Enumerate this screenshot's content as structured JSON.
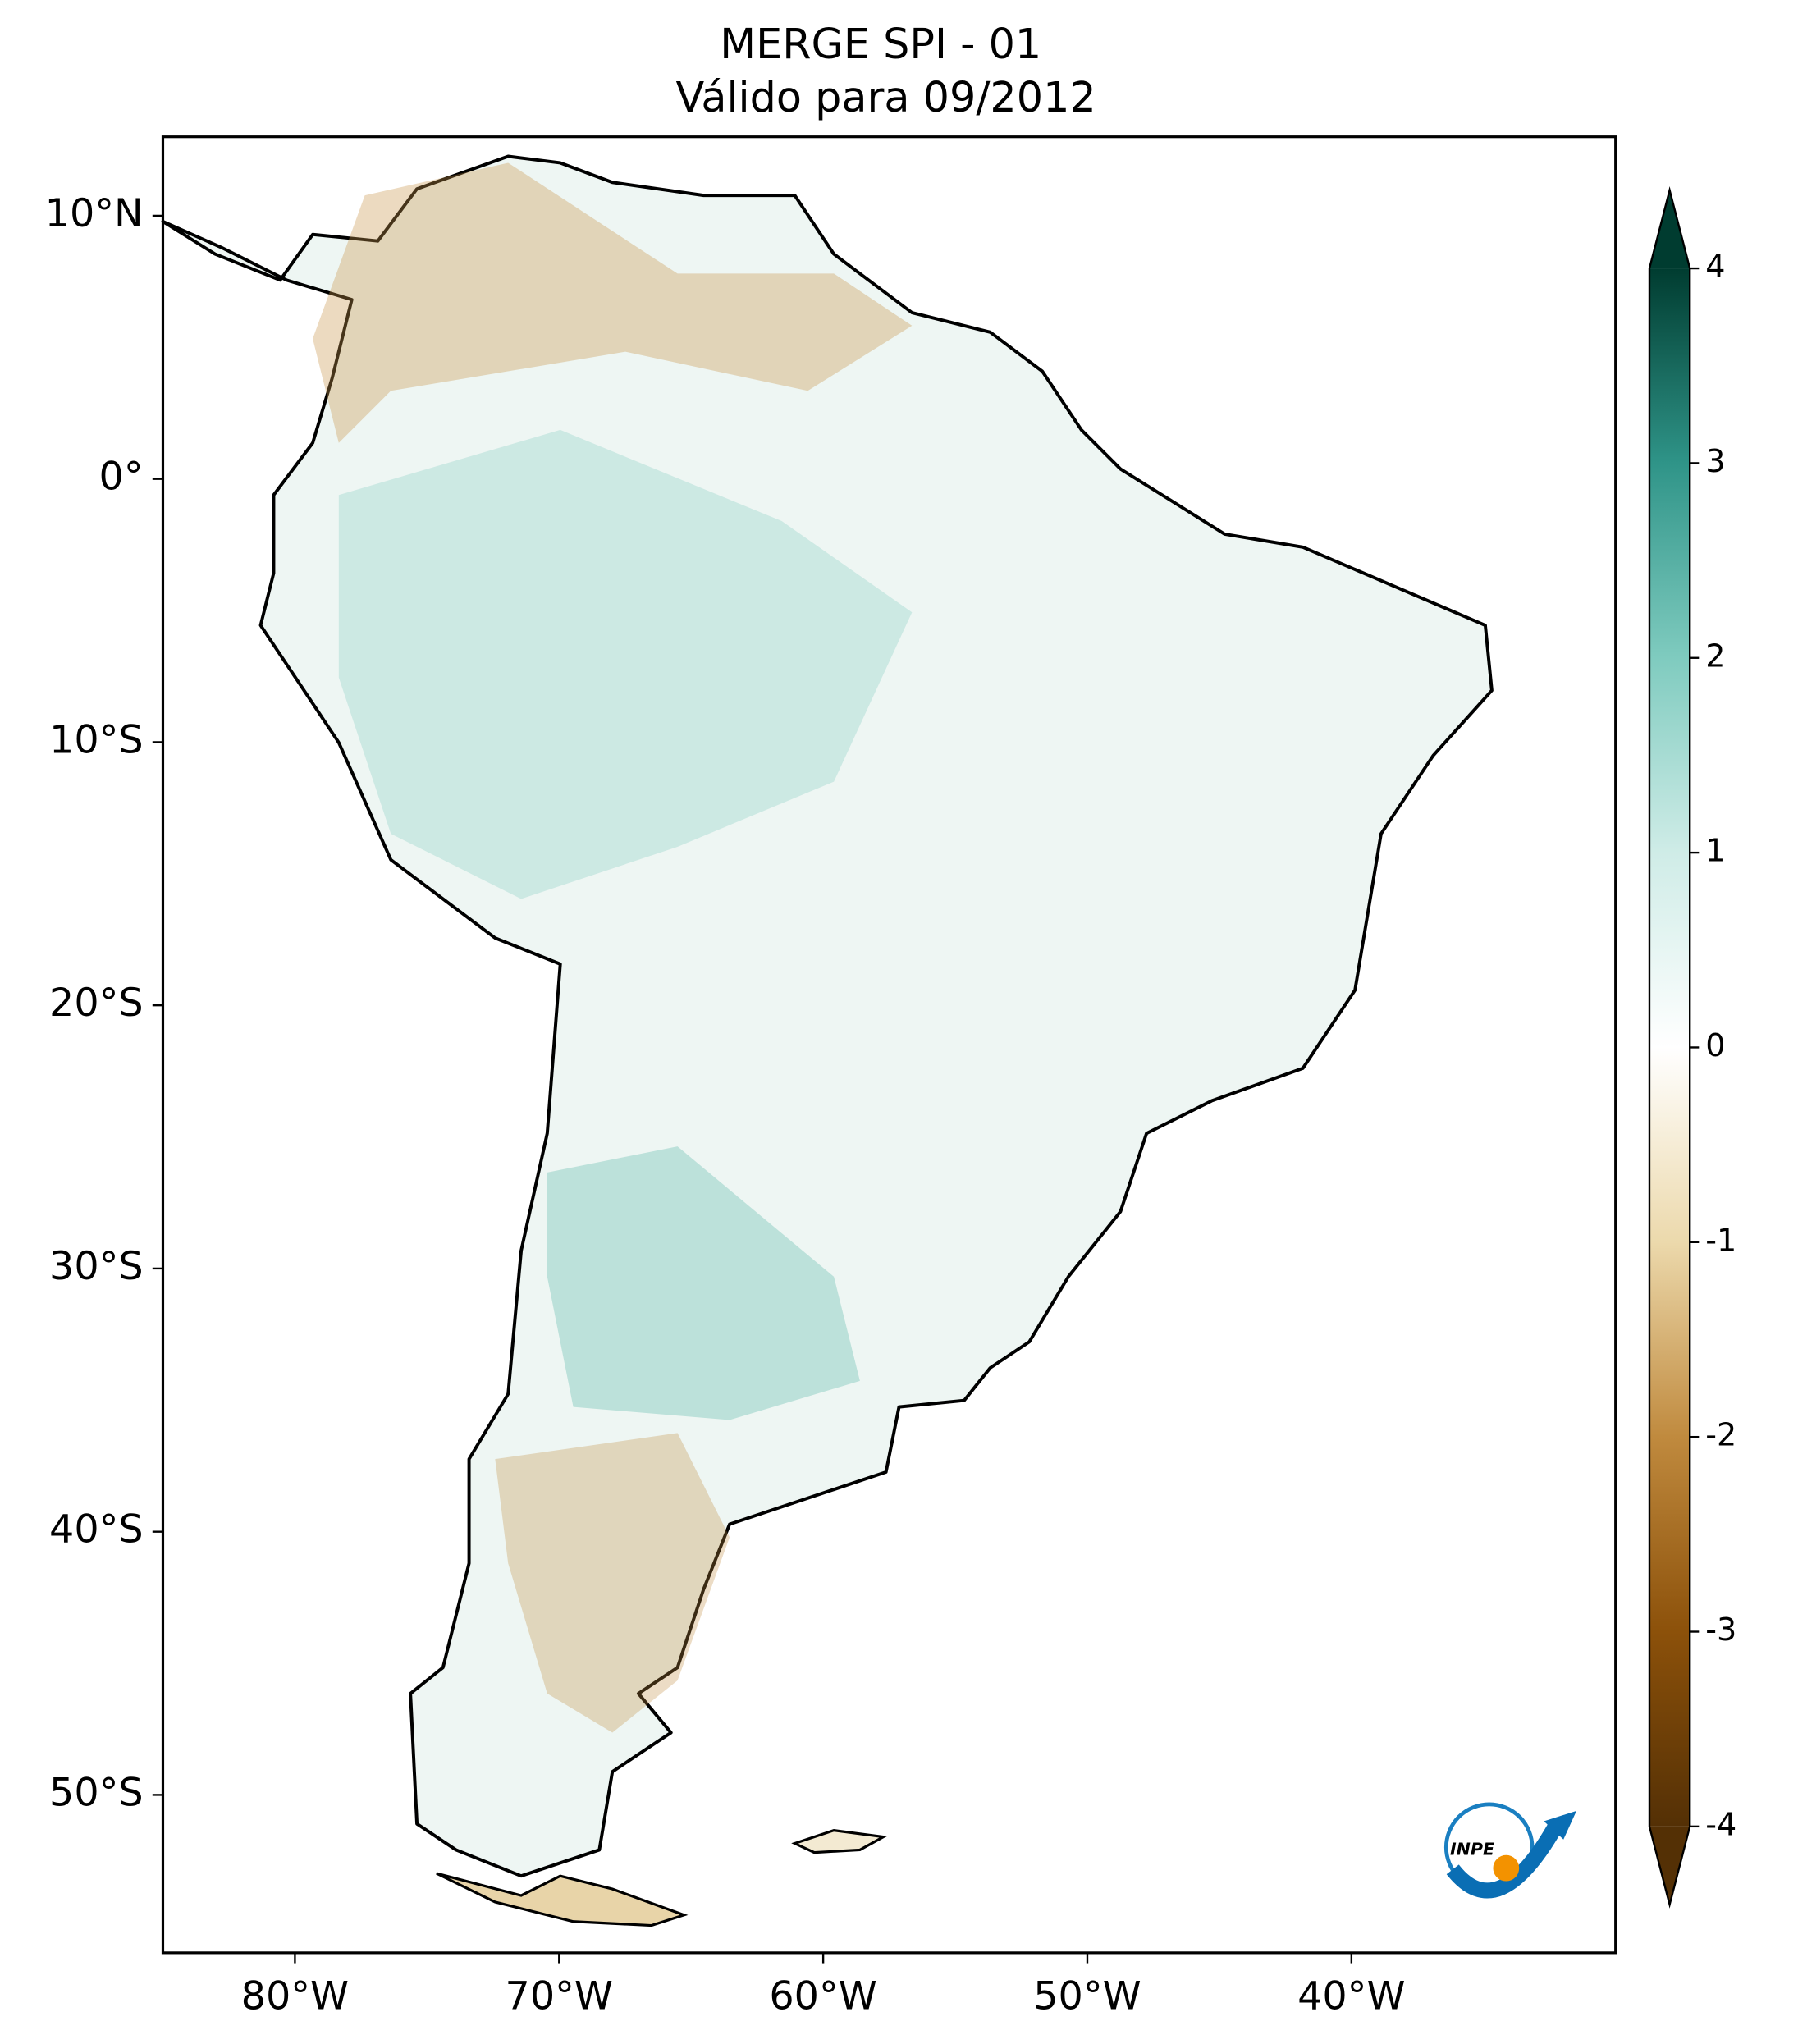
{
  "title": [
    "MERGE   SPI - 01",
    "Válido para 09/2012"
  ],
  "map": {
    "xlim": [
      -85,
      -30
    ],
    "ylim": [
      -56,
      13
    ],
    "xticks": [
      {
        "value": -80,
        "label": "80°W"
      },
      {
        "value": -70,
        "label": "70°W"
      },
      {
        "value": -60,
        "label": "60°W"
      },
      {
        "value": -50,
        "label": "50°W"
      },
      {
        "value": -40,
        "label": "40°W"
      }
    ],
    "yticks": [
      {
        "value": 10,
        "label": "10°N"
      },
      {
        "value": 0,
        "label": "0°"
      },
      {
        "value": -10,
        "label": "10°S"
      },
      {
        "value": -20,
        "label": "20°S"
      },
      {
        "value": -30,
        "label": "30°S"
      },
      {
        "value": -40,
        "label": "40°S"
      },
      {
        "value": -50,
        "label": "50°S"
      }
    ]
  },
  "colorbar": {
    "ticks": [
      -4,
      -3,
      -2,
      -1,
      0,
      1,
      2,
      3,
      4
    ],
    "colors": [
      "#543005",
      "#8c510a",
      "#c08a3e",
      "#ecd9ac",
      "#ffffff",
      "#cfece7",
      "#7fcbbf",
      "#2f9488",
      "#003c30"
    ]
  },
  "logo": "INPE"
}
